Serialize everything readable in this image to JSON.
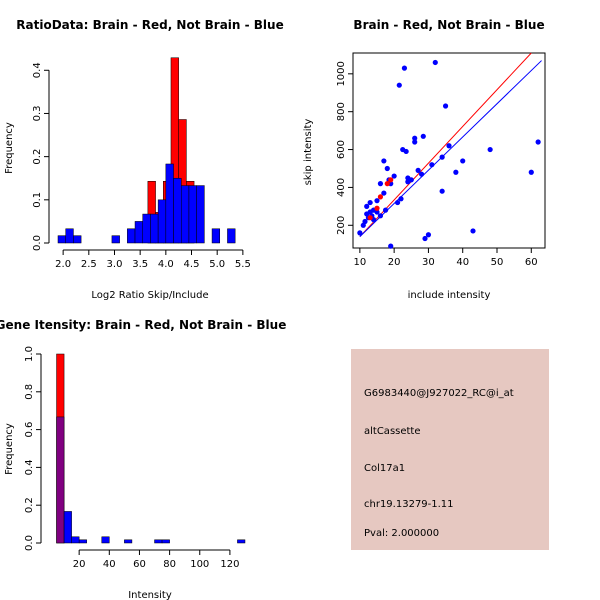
{
  "colors": {
    "red": "#ff0000",
    "blue": "#0000ff",
    "purple": "#800080",
    "panel_bg": "#e6c8c1",
    "pval": "#c00000"
  },
  "chart_data": [
    {
      "type": "bar",
      "title": "RatioData: Brain - Red, Not Brain - Blue",
      "xlabel": "Log2 Ratio Skip/Include",
      "ylabel": "Frequency",
      "xlim": [
        1.9,
        5.6
      ],
      "ylim": [
        0,
        0.44
      ],
      "xticks": [
        "2.0",
        "2.5",
        "3.0",
        "3.5",
        "4.0",
        "4.5",
        "5.0",
        "5.5"
      ],
      "xtick_values": [
        2.0,
        2.5,
        3.0,
        3.5,
        4.0,
        4.5,
        5.0,
        5.5
      ],
      "yticks": [
        "0.0",
        "0.1",
        "0.2",
        "0.3",
        "0.4"
      ],
      "ytick_values": [
        0.0,
        0.1,
        0.2,
        0.3,
        0.4
      ],
      "bin_width": 0.15,
      "series": [
        {
          "name": "Brain",
          "color": "red",
          "bin_starts": [
            3.65,
            3.8,
            3.95,
            4.1,
            4.25,
            4.4
          ],
          "values": [
            0.143,
            0.071,
            0.143,
            0.429,
            0.286,
            0.143
          ]
        },
        {
          "name": "Not Brain",
          "color": "blue",
          "bin_starts": [
            1.9,
            2.05,
            2.2,
            2.95,
            3.25,
            3.4,
            3.55,
            3.7,
            3.85,
            4.0,
            4.15,
            4.3,
            4.45,
            4.6,
            4.9,
            5.2
          ],
          "values": [
            0.017,
            0.033,
            0.017,
            0.017,
            0.033,
            0.05,
            0.067,
            0.067,
            0.1,
            0.183,
            0.15,
            0.133,
            0.133,
            0.133,
            0.033,
            0.033
          ]
        }
      ]
    },
    {
      "type": "scatter",
      "title": "Brain - Red, Not Brain - Blue",
      "xlabel": "include intensity",
      "ylabel": "skip intensity",
      "xlim": [
        8,
        64
      ],
      "ylim": [
        80,
        1110
      ],
      "xticks": [
        "10",
        "20",
        "30",
        "40",
        "50",
        "60"
      ],
      "xtick_values": [
        10,
        20,
        30,
        40,
        50,
        60
      ],
      "yticks": [
        "200",
        "400",
        "600",
        "800",
        "1000"
      ],
      "ytick_values": [
        200,
        400,
        600,
        800,
        1000
      ],
      "series": [
        {
          "name": "Not Brain",
          "color": "blue",
          "x": [
            10,
            11,
            11.5,
            12,
            12,
            12.5,
            13,
            13,
            13.5,
            14,
            14,
            15,
            15,
            16,
            16,
            17,
            17,
            17.5,
            18,
            18.5,
            19,
            19,
            20,
            21,
            21.5,
            22,
            22.5,
            23,
            23.5,
            24,
            24,
            25,
            26,
            26,
            27,
            28,
            28.5,
            29,
            30,
            31,
            32,
            34,
            34,
            35,
            36,
            38,
            40,
            43,
            48,
            60,
            62
          ],
          "y": [
            160,
            200,
            220,
            260,
            300,
            240,
            270,
            320,
            250,
            280,
            230,
            330,
            270,
            420,
            250,
            540,
            370,
            280,
            500,
            440,
            420,
            90,
            460,
            320,
            940,
            340,
            600,
            1030,
            590,
            450,
            430,
            440,
            640,
            660,
            490,
            470,
            670,
            130,
            150,
            520,
            1060,
            380,
            560,
            830,
            620,
            480,
            540,
            170,
            600,
            480,
            640
          ]
        },
        {
          "name": "Brain",
          "color": "red",
          "x": [
            13,
            15,
            16,
            18,
            19
          ],
          "y": [
            240,
            290,
            350,
            420,
            440
          ]
        }
      ],
      "fit_lines": [
        {
          "name": "Brain fit",
          "color": "red",
          "x": [
            10,
            60
          ],
          "y": [
            140,
            1110
          ]
        },
        {
          "name": "Not Brain fit",
          "color": "blue",
          "x": [
            10,
            63
          ],
          "y": [
            140,
            1070
          ]
        }
      ]
    },
    {
      "type": "bar",
      "title": "Gene Itensity: Brain - Red, Not Brain - Blue",
      "xlabel": "Intensity",
      "ylabel": "Frequency",
      "xlim": [
        0,
        132
      ],
      "ylim": [
        0,
        1.0
      ],
      "xticks": [
        "20",
        "40",
        "60",
        "80",
        "100",
        "120"
      ],
      "xtick_values": [
        20,
        40,
        60,
        80,
        100,
        120
      ],
      "yticks": [
        "0.0",
        "0.2",
        "0.4",
        "0.6",
        "0.8",
        "1.0"
      ],
      "ytick_values": [
        0.0,
        0.2,
        0.4,
        0.6,
        0.8,
        1.0
      ],
      "bin_width": 5,
      "series": [
        {
          "name": "Brain",
          "color": "red",
          "bin_starts": [
            5
          ],
          "values": [
            1.0
          ]
        },
        {
          "name": "Not Brain",
          "color": "blue",
          "bin_starts": [
            5,
            10,
            15,
            20,
            35,
            50,
            70,
            75,
            125
          ],
          "values": [
            0.667,
            0.167,
            0.033,
            0.017,
            0.033,
            0.017,
            0.017,
            0.017,
            0.017
          ]
        }
      ]
    }
  ],
  "info_panel": {
    "lines": [
      "G6983440@J927022_RC@i_at",
      "altCassette",
      "Col17a1",
      "chr19.13279-1.11"
    ],
    "pval": "Pval: 2.000000"
  }
}
